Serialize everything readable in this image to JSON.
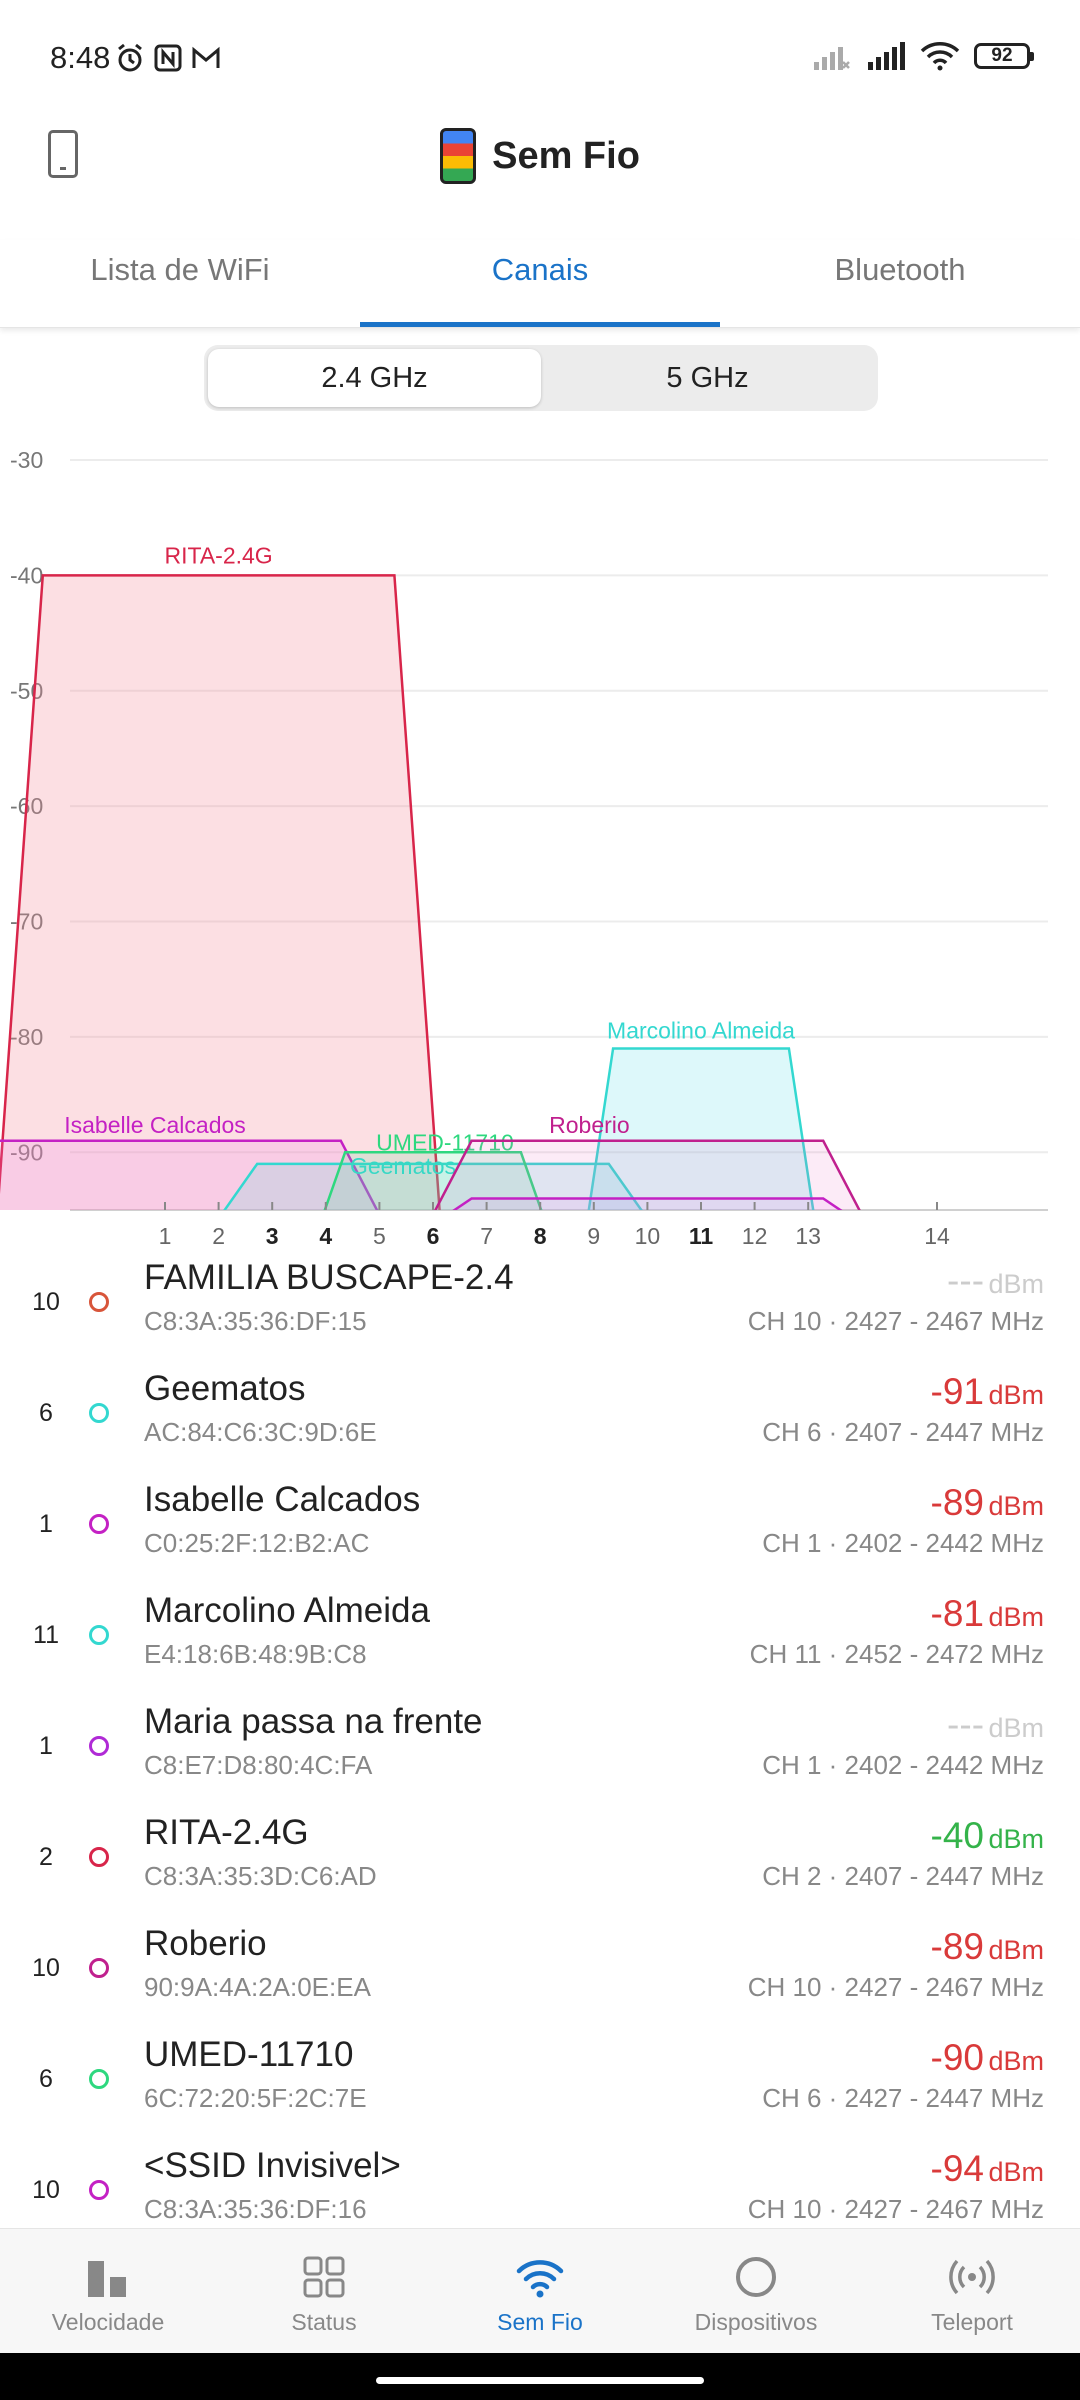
{
  "status_bar": {
    "time": "8:48",
    "battery": "92",
    "left_icons": [
      "alarm-icon",
      "nfc-icon",
      "gmail-icon"
    ],
    "right_icons": [
      "signal-off-icon",
      "signal-icon",
      "wifi-icon",
      "battery-icon"
    ]
  },
  "header": {
    "title": "Sem Fio",
    "left_icon": "phone-outline-icon",
    "logo_icon": "app-logo-icon"
  },
  "tabs": [
    {
      "label": "Lista de WiFi",
      "active": false
    },
    {
      "label": "Canais",
      "active": true
    },
    {
      "label": "Bluetooth",
      "active": false
    }
  ],
  "band_selector": [
    {
      "label": "2.4 GHz",
      "active": true
    },
    {
      "label": "5 GHz",
      "active": false
    }
  ],
  "chart_data": {
    "type": "area",
    "title": "",
    "xlabel": "",
    "ylabel": "",
    "y_ticks": [
      "-30",
      "-40",
      "-50",
      "-60",
      "-70",
      "-80",
      "-90"
    ],
    "ylim": [
      -95,
      -30
    ],
    "x_ticks": [
      "1",
      "2",
      "3",
      "4",
      "5",
      "6",
      "7",
      "8",
      "9",
      "10",
      "11",
      "12",
      "13",
      "14"
    ],
    "x_bold_ticks": [
      "3",
      "4",
      "6",
      "8",
      "11"
    ],
    "grid": true,
    "series": [
      {
        "name": "RITA-2.4G",
        "center_channel": 2,
        "width_mhz": 40,
        "value": -40,
        "color": "#d8254a",
        "fill": "rgba(245,140,155,0.28)",
        "show_label": true
      },
      {
        "name": "Marcolino Almeida",
        "center_channel": 11,
        "width_mhz": 20,
        "value": -81,
        "color": "#33d8d0",
        "fill": "rgba(100,225,230,0.22)",
        "show_label": true
      },
      {
        "name": "Isabelle Calcados",
        "center_channel": 1,
        "width_mhz": 40,
        "value": -89,
        "color": "#c421c4",
        "fill": "rgba(240,120,240,0.18)",
        "show_label": true
      },
      {
        "name": "Geematos",
        "center_channel": 6,
        "width_mhz": 40,
        "value": -91,
        "color": "#33d8d0",
        "fill": "rgba(110,220,225,0.22)",
        "show_label": true
      },
      {
        "name": "UMED-11710",
        "center_channel": 6,
        "width_mhz": 20,
        "value": -90,
        "color": "#2ed87f",
        "fill": "rgba(80,220,140,0.16)",
        "show_label": true
      },
      {
        "name": "Roberio",
        "center_channel": 10,
        "width_mhz": 40,
        "value": -89,
        "color": "#c0208e",
        "fill": "rgba(235,110,200,0.14)",
        "show_label": true
      },
      {
        "name": "<SSID Invisivel>",
        "center_channel": 10,
        "width_mhz": 40,
        "value": -94,
        "color": "#c421c4",
        "fill": "rgba(240,120,240,0.12)",
        "show_label": false
      }
    ]
  },
  "networks": [
    {
      "channel": "10",
      "name": "FAMILIA BUSCAPE-2.4",
      "mac": "C8:3A:35:36:DF:15",
      "dbm": "---",
      "unit": "dBm",
      "info": "CH 10 · 2427 - 2467 MHz",
      "signal_state": "none",
      "dot_color": "#d8553a"
    },
    {
      "channel": "6",
      "name": "Geematos",
      "mac": "AC:84:C6:3C:9D:6E",
      "dbm": "-91",
      "unit": "dBm",
      "info": "CH 6 · 2407 - 2447 MHz",
      "signal_state": "red",
      "dot_color": "#33d8d0"
    },
    {
      "channel": "1",
      "name": "Isabelle Calcados",
      "mac": "C0:25:2F:12:B2:AC",
      "dbm": "-89",
      "unit": "dBm",
      "info": "CH 1 · 2402 - 2442 MHz",
      "signal_state": "red",
      "dot_color": "#c421c4"
    },
    {
      "channel": "11",
      "name": "Marcolino Almeida",
      "mac": "E4:18:6B:48:9B:C8",
      "dbm": "-81",
      "unit": "dBm",
      "info": "CH 11 · 2452 - 2472 MHz",
      "signal_state": "red",
      "dot_color": "#33d8d0"
    },
    {
      "channel": "1",
      "name": "Maria passa na frente",
      "mac": "C8:E7:D8:80:4C:FA",
      "dbm": "---",
      "unit": "dBm",
      "info": "CH 1 · 2402 - 2442 MHz",
      "signal_state": "none",
      "dot_color": "#b02ad6"
    },
    {
      "channel": "2",
      "name": "RITA-2.4G",
      "mac": "C8:3A:35:3D:C6:AD",
      "dbm": "-40",
      "unit": "dBm",
      "info": "CH 2 · 2407 - 2447 MHz",
      "signal_state": "green",
      "dot_color": "#d8254a"
    },
    {
      "channel": "10",
      "name": "Roberio",
      "mac": "90:9A:4A:2A:0E:EA",
      "dbm": "-89",
      "unit": "dBm",
      "info": "CH 10 · 2427 - 2467 MHz",
      "signal_state": "red",
      "dot_color": "#c0208e"
    },
    {
      "channel": "6",
      "name": "UMED-11710",
      "mac": "6C:72:20:5F:2C:7E",
      "dbm": "-90",
      "unit": "dBm",
      "info": "CH 6 · 2427 - 2447 MHz",
      "signal_state": "red",
      "dot_color": "#2ed87f"
    },
    {
      "channel": "10",
      "name": "<SSID Invisivel>",
      "mac": "C8:3A:35:36:DF:16",
      "dbm": "-94",
      "unit": "dBm",
      "info": "CH 10 · 2427 - 2467 MHz",
      "signal_state": "red",
      "dot_color": "#c421c4"
    }
  ],
  "bottom_nav": [
    {
      "label": "Velocidade",
      "icon": "speed-bars-icon",
      "active": false
    },
    {
      "label": "Status",
      "icon": "grid-icon",
      "active": false
    },
    {
      "label": "Sem Fio",
      "icon": "wifi-icon",
      "active": true
    },
    {
      "label": "Dispositivos",
      "icon": "circle-icon",
      "active": false
    },
    {
      "label": "Teleport",
      "icon": "teleport-icon",
      "active": false
    }
  ]
}
